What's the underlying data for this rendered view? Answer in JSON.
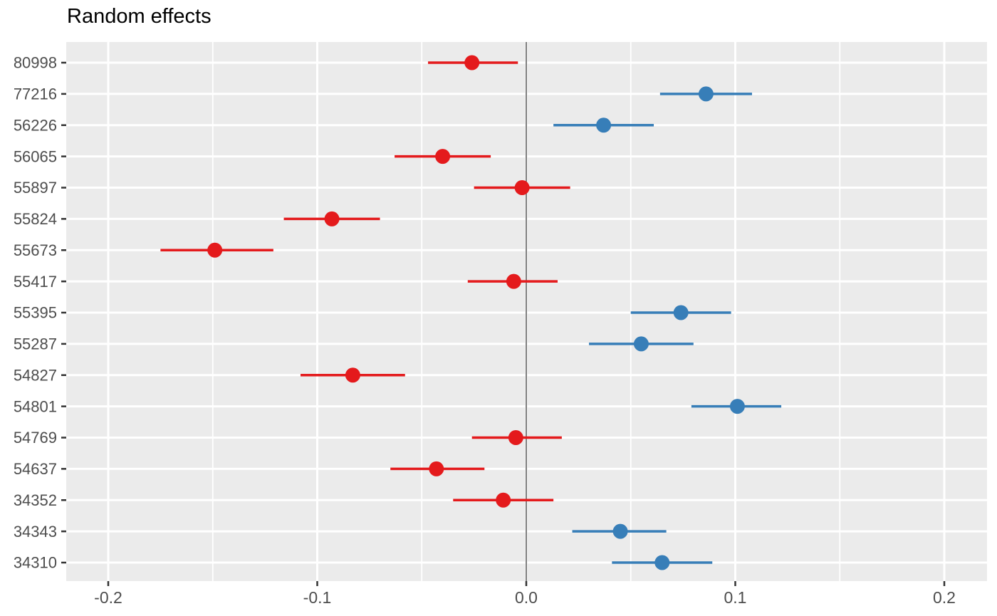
{
  "chart_data": {
    "type": "scatter",
    "subtype": "forest-plot-horizontal-errorbars",
    "title": "Random effects",
    "xlabel": "",
    "ylabel": "",
    "legend": "none",
    "grid": "on",
    "zero_line": 0.0,
    "x_axis": {
      "range": [
        -0.219,
        0.22
      ],
      "ticks": [
        {
          "value": -0.2,
          "label": "-0.2"
        },
        {
          "value": -0.1,
          "label": "-0.1"
        },
        {
          "value": 0.0,
          "label": "0.0"
        },
        {
          "value": 0.1,
          "label": "0.1"
        },
        {
          "value": 0.2,
          "label": "0.2"
        }
      ],
      "minor_ticks": [
        -0.15,
        -0.05,
        0.05,
        0.15
      ]
    },
    "categories_top_to_bottom": [
      "80998",
      "77216",
      "56226",
      "56065",
      "55897",
      "55824",
      "55673",
      "55417",
      "55395",
      "55287",
      "54827",
      "54801",
      "54769",
      "54637",
      "34352",
      "34343",
      "34310"
    ],
    "points": [
      {
        "label": "80998",
        "estimate": -0.026,
        "ci_low": -0.047,
        "ci_high": -0.004,
        "direction": "negative"
      },
      {
        "label": "77216",
        "estimate": 0.086,
        "ci_low": 0.064,
        "ci_high": 0.108,
        "direction": "positive"
      },
      {
        "label": "56226",
        "estimate": 0.037,
        "ci_low": 0.013,
        "ci_high": 0.061,
        "direction": "positive"
      },
      {
        "label": "56065",
        "estimate": -0.04,
        "ci_low": -0.063,
        "ci_high": -0.017,
        "direction": "negative"
      },
      {
        "label": "55897",
        "estimate": -0.002,
        "ci_low": -0.025,
        "ci_high": 0.021,
        "direction": "negative"
      },
      {
        "label": "55824",
        "estimate": -0.093,
        "ci_low": -0.116,
        "ci_high": -0.07,
        "direction": "negative"
      },
      {
        "label": "55673",
        "estimate": -0.149,
        "ci_low": -0.175,
        "ci_high": -0.121,
        "direction": "negative"
      },
      {
        "label": "55417",
        "estimate": -0.006,
        "ci_low": -0.028,
        "ci_high": 0.015,
        "direction": "negative"
      },
      {
        "label": "55395",
        "estimate": 0.074,
        "ci_low": 0.05,
        "ci_high": 0.098,
        "direction": "positive"
      },
      {
        "label": "55287",
        "estimate": 0.055,
        "ci_low": 0.03,
        "ci_high": 0.08,
        "direction": "positive"
      },
      {
        "label": "54827",
        "estimate": -0.083,
        "ci_low": -0.108,
        "ci_high": -0.058,
        "direction": "negative"
      },
      {
        "label": "54801",
        "estimate": 0.101,
        "ci_low": 0.079,
        "ci_high": 0.122,
        "direction": "positive"
      },
      {
        "label": "54769",
        "estimate": -0.005,
        "ci_low": -0.026,
        "ci_high": 0.017,
        "direction": "negative"
      },
      {
        "label": "54637",
        "estimate": -0.043,
        "ci_low": -0.065,
        "ci_high": -0.02,
        "direction": "negative"
      },
      {
        "label": "34352",
        "estimate": -0.011,
        "ci_low": -0.035,
        "ci_high": 0.013,
        "direction": "negative"
      },
      {
        "label": "34343",
        "estimate": 0.045,
        "ci_low": 0.022,
        "ci_high": 0.067,
        "direction": "positive"
      },
      {
        "label": "34310",
        "estimate": 0.065,
        "ci_low": 0.041,
        "ci_high": 0.089,
        "direction": "positive"
      }
    ],
    "colors": {
      "negative": "#e41a1c",
      "positive": "#377eb8",
      "panel_background": "#ebebeb",
      "gridline": "#ffffff",
      "zero_line": "#7f7f7f",
      "axis_text": "#4d4d4d",
      "tick_mark": "#333333",
      "title_text": "#000000"
    }
  }
}
